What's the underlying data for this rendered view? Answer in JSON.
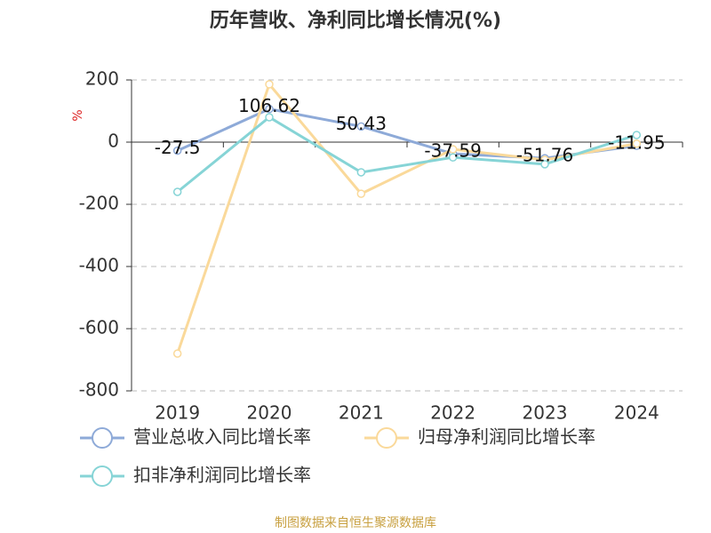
{
  "chart_data": {
    "type": "line",
    "title": "历年营收、净利同比增长情况(%)",
    "y_label": "%",
    "source": "制图数据来自恒生聚源数据库",
    "categories": [
      "2019",
      "2020",
      "2021",
      "2022",
      "2023",
      "2024"
    ],
    "series": [
      {
        "name": "营业总收入同比增长率",
        "color": "#8eaad8",
        "values": [
          -27.5,
          106.62,
          50.43,
          -37.59,
          -51.76,
          -11.95
        ],
        "labels": true
      },
      {
        "name": "归母净利润同比增长率",
        "color": "#fad99a",
        "values": [
          -680,
          186,
          -166,
          -23,
          -57,
          -5
        ]
      },
      {
        "name": "扣非净利润同比增长率",
        "color": "#86d4d6",
        "values": [
          -160,
          80,
          -97,
          -49,
          -71,
          23
        ]
      }
    ],
    "ylim": [
      -800,
      200
    ],
    "yticks": [
      -800,
      -600,
      -400,
      -200,
      0,
      200
    ],
    "grid": true
  }
}
